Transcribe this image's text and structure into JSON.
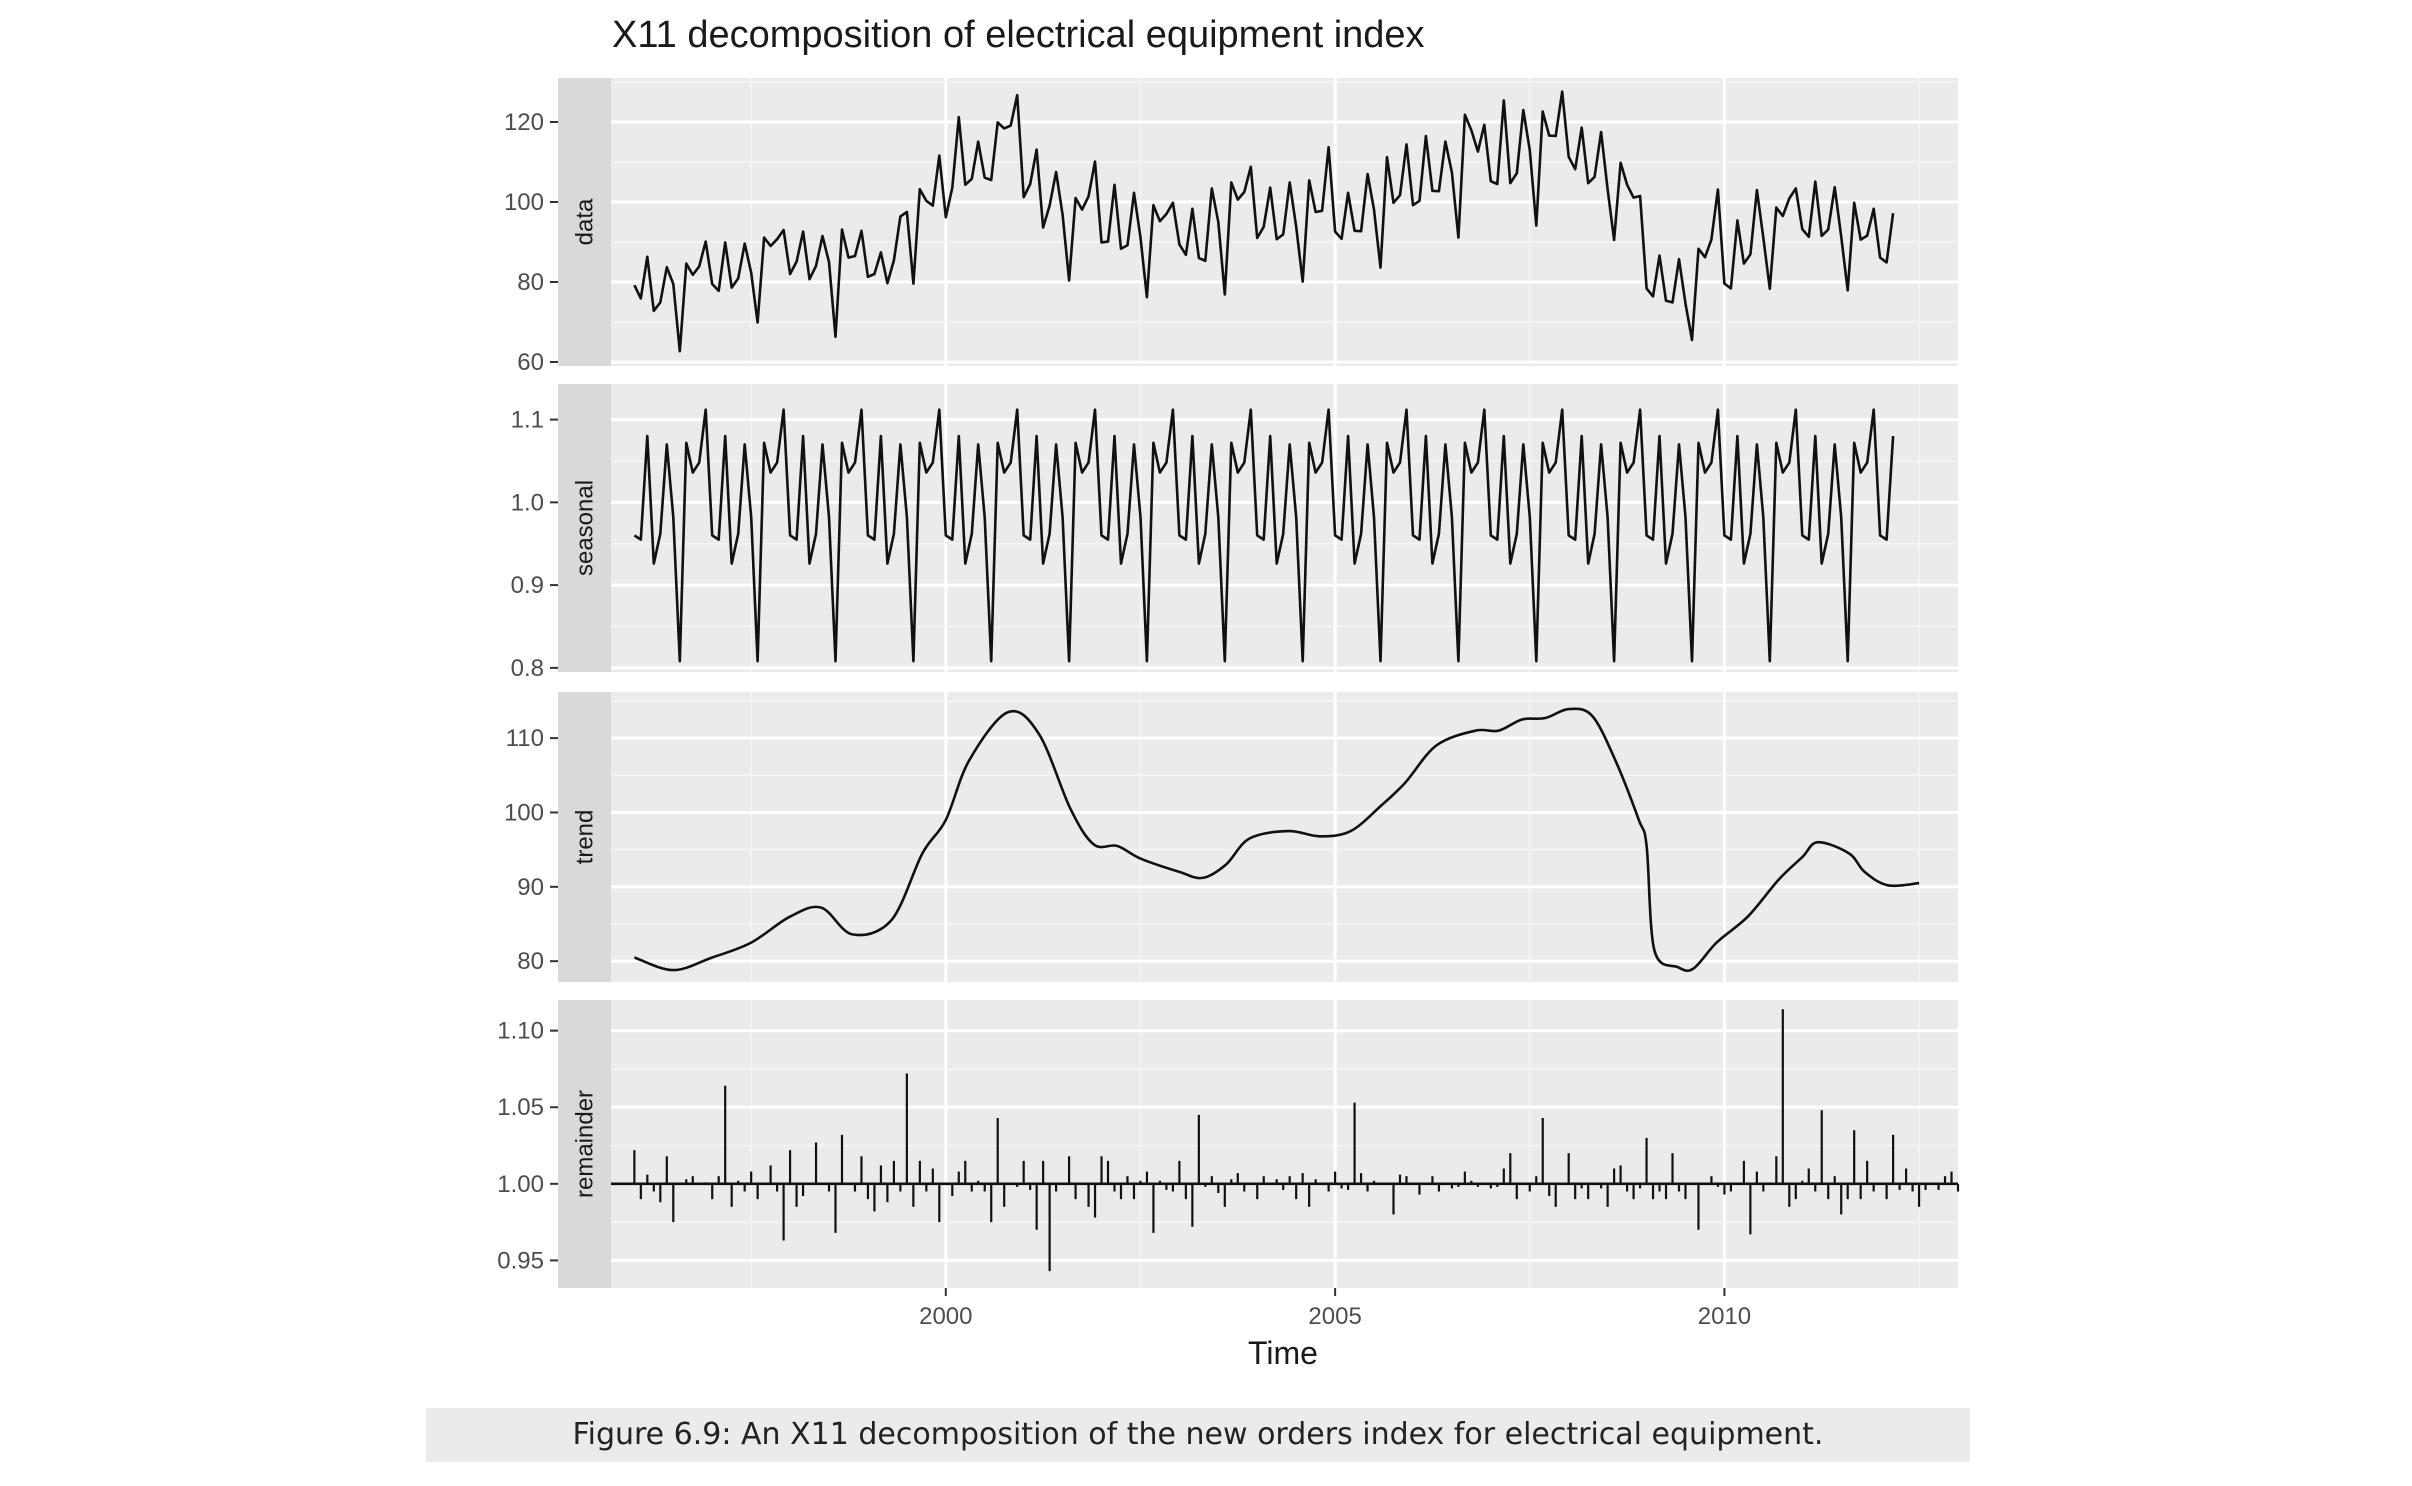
{
  "caption": "Figure 6.9: An X11 decomposition of the new orders index for electrical equipment.",
  "chart_data": {
    "type": "line",
    "title": "X11 decomposition of electrical equipment index",
    "xlabel": "Time",
    "x_ticks": [
      2000,
      2005,
      2010
    ],
    "xlim": [
      1995.7,
      2013.0
    ],
    "start": 1996.0,
    "frequency": 12,
    "grid": true,
    "panels": [
      {
        "name": "data",
        "ylim": [
          59,
          131
        ],
        "y_ticks": [
          60,
          80,
          100,
          120
        ],
        "y_tick_labels": [
          "60",
          "80",
          "100",
          "120"
        ],
        "values": [
          79.2,
          75.9,
          86.3,
          72.8,
          74.9,
          83.7,
          79.5,
          62.7,
          84.6,
          81.8,
          83.9,
          90.1,
          79.5,
          77.8,
          89.9,
          78.6,
          80.9,
          89.6,
          82.3,
          69.9,
          91.1,
          89.0,
          90.7,
          93.0,
          82.0,
          85.1,
          92.6,
          80.7,
          84.0,
          91.5,
          85.0,
          66.3,
          93.1,
          86.1,
          86.5,
          92.8,
          81.3,
          82.0,
          87.4,
          79.7,
          85.4,
          96.4,
          97.5,
          79.6,
          103.2,
          100.3,
          99.1,
          111.6,
          96.2,
          103.6,
          121.2,
          104.3,
          105.8,
          115.1,
          106.1,
          105.5,
          119.9,
          118.4,
          119.1,
          126.7,
          101.2,
          104.5,
          113.1,
          93.6,
          99.1,
          107.5,
          96.8,
          80.4,
          101.0,
          98.1,
          101.4,
          110.1,
          89.9,
          90.1,
          104.3,
          88.3,
          89.2,
          102.3,
          91.1,
          76.2,
          99.2,
          95.2,
          97.0,
          99.8,
          89.4,
          86.8,
          98.3,
          86.0,
          85.3,
          103.4,
          95.0,
          76.9,
          104.9,
          100.6,
          102.5,
          108.8,
          91.0,
          93.8,
          103.6,
          90.7,
          91.9,
          104.9,
          93.8,
          80.1,
          105.4,
          97.5,
          97.8,
          113.7,
          92.6,
          90.8,
          102.3,
          92.8,
          92.7,
          107.0,
          98.1,
          83.6,
          111.2,
          99.8,
          101.7,
          114.4,
          99.2,
          100.3,
          116.5,
          102.8,
          102.7,
          115.1,
          107.4,
          91.1,
          121.8,
          117.9,
          112.6,
          119.3,
          105.2,
          104.5,
          125.4,
          104.7,
          107.2,
          123.0,
          112.9,
          94.1,
          122.6,
          116.6,
          116.5,
          127.6,
          111.3,
          108.2,
          118.6,
          104.7,
          106.3,
          117.5,
          103.2,
          90.5,
          109.8,
          104.3,
          101.1,
          101.5,
          78.4,
          76.4,
          86.6,
          75.3,
          74.9,
          85.7,
          74.6,
          65.5,
          88.3,
          86.2,
          90.6,
          103.1,
          79.6,
          78.4,
          95.4,
          84.6,
          86.9,
          103.0,
          91.1,
          78.3,
          98.6,
          96.5,
          100.9,
          103.4,
          93.2,
          91.3,
          105.1,
          91.5,
          93.1,
          103.7,
          91.4,
          77.9,
          99.8,
          90.6,
          91.6,
          98.3,
          86.1,
          84.9,
          97.2
        ],
        "line": true
      },
      {
        "name": "seasonal",
        "ylim": [
          0.795,
          1.143
        ],
        "y_ticks": [
          0.8,
          0.9,
          1.0,
          1.1
        ],
        "y_tick_labels": [
          "0.8",
          "0.9",
          "1.0",
          "1.1"
        ],
        "pattern": [
          0.96,
          0.955,
          1.08,
          0.926,
          0.962,
          1.07,
          0.982,
          0.808,
          1.072,
          1.036,
          1.048,
          1.112
        ],
        "line": true
      },
      {
        "name": "trend",
        "ylim": [
          77.2,
          116.2
        ],
        "y_ticks": [
          80,
          90,
          100,
          110
        ],
        "y_tick_labels": [
          "80",
          "90",
          "100",
          "110"
        ],
        "knots": [
          [
            1996.0,
            80.5
          ],
          [
            1996.5,
            78.8
          ],
          [
            1997.0,
            80.5
          ],
          [
            1997.5,
            82.5
          ],
          [
            1998.0,
            86.0
          ],
          [
            1998.4,
            87.2
          ],
          [
            1998.8,
            83.6
          ],
          [
            1999.3,
            85.5
          ],
          [
            1999.7,
            94.5
          ],
          [
            2000.0,
            99.0
          ],
          [
            2000.3,
            107.0
          ],
          [
            2000.8,
            113.5
          ],
          [
            2001.2,
            110.5
          ],
          [
            2001.6,
            100.5
          ],
          [
            2001.9,
            95.7
          ],
          [
            2002.2,
            95.5
          ],
          [
            2002.5,
            93.8
          ],
          [
            2003.0,
            92.0
          ],
          [
            2003.3,
            91.2
          ],
          [
            2003.6,
            93.0
          ],
          [
            2003.9,
            96.5
          ],
          [
            2004.4,
            97.5
          ],
          [
            2004.8,
            96.8
          ],
          [
            2005.2,
            97.5
          ],
          [
            2005.6,
            101.0
          ],
          [
            2005.9,
            104.0
          ],
          [
            2006.3,
            109.0
          ],
          [
            2006.8,
            111.0
          ],
          [
            2007.1,
            111.0
          ],
          [
            2007.4,
            112.5
          ],
          [
            2007.7,
            112.7
          ],
          [
            2008.0,
            113.9
          ],
          [
            2008.3,
            113.0
          ],
          [
            2008.6,
            107.0
          ],
          [
            2008.9,
            99.0
          ],
          [
            2009.0,
            95.5
          ],
          [
            2009.1,
            81.5
          ],
          [
            2009.4,
            79.2
          ],
          [
            2009.6,
            79.0
          ],
          [
            2009.9,
            82.5
          ],
          [
            2010.3,
            86.0
          ],
          [
            2010.7,
            91.0
          ],
          [
            2011.0,
            94.0
          ],
          [
            2011.2,
            96.0
          ],
          [
            2011.6,
            94.5
          ],
          [
            2011.8,
            92.0
          ],
          [
            2012.1,
            90.2
          ],
          [
            2012.5,
            90.5
          ]
        ],
        "line": true
      },
      {
        "name": "remainder",
        "ylim": [
          0.932,
          1.12
        ],
        "y_ticks": [
          0.95,
          1.0,
          1.05,
          1.1
        ],
        "y_tick_labels": [
          "0.95",
          "1.00",
          "1.05",
          "1.10"
        ],
        "baseline": 1.0,
        "values": [
          1.022,
          0.99,
          1.006,
          0.995,
          0.988,
          1.018,
          0.975,
          1.0,
          1.003,
          1.005,
          1.0,
          1.001,
          0.99,
          1.005,
          1.064,
          0.985,
          1.002,
          0.995,
          1.008,
          0.99,
          1.0,
          1.012,
          0.995,
          0.963,
          1.022,
          0.985,
          0.992,
          1.0,
          1.027,
          1.0,
          0.995,
          0.968,
          1.032,
          1.0,
          0.995,
          1.018,
          0.99,
          0.982,
          1.012,
          0.988,
          1.015,
          0.995,
          1.072,
          0.985,
          1.015,
          0.995,
          1.01,
          0.975,
          1.0,
          0.992,
          1.008,
          1.015,
          0.995,
          1.002,
          0.995,
          0.975,
          1.043,
          0.985,
          1.0,
          0.998,
          1.015,
          0.996,
          0.97,
          1.015,
          0.943,
          0.995,
          1.0,
          1.018,
          0.99,
          1.0,
          0.985,
          0.978,
          1.018,
          1.015,
          0.995,
          0.99,
          1.005,
          0.99,
          1.002,
          1.008,
          0.968,
          1.002,
          0.996,
          0.995,
          1.015,
          0.99,
          0.972,
          1.045,
          0.998,
          1.005,
          0.994,
          0.985,
          1.003,
          1.007,
          0.995,
          1.0,
          0.99,
          1.005,
          1.0,
          1.003,
          0.996,
          1.005,
          0.99,
          1.007,
          0.985,
          1.003,
          1.0,
          0.995,
          1.008,
          0.997,
          0.996,
          1.053,
          1.007,
          0.995,
          1.002,
          1.0,
          1.0,
          0.98,
          1.006,
          1.005,
          1.0,
          0.993,
          1.0,
          1.005,
          0.995,
          1.0,
          0.997,
          0.998,
          1.008,
          1.002,
          0.998,
          1.0,
          0.997,
          0.998,
          1.01,
          1.02,
          0.99,
          1.0,
          0.995,
          1.005,
          1.043,
          0.992,
          0.985,
          1.0,
          1.02,
          0.99,
          0.997,
          0.99,
          1.0,
          0.997,
          0.985,
          1.01,
          1.012,
          0.995,
          0.99,
          0.997,
          1.03,
          0.99,
          0.995,
          0.99,
          1.02,
          0.995,
          0.99,
          1.0,
          0.97,
          1.0,
          1.005,
          0.998,
          0.993,
          0.995,
          1.0,
          1.015,
          0.967,
          1.008,
          0.995,
          1.0,
          1.018,
          1.114,
          0.985,
          0.99,
          1.002,
          1.01,
          0.995,
          1.048,
          0.99,
          1.005,
          0.98,
          0.99,
          1.035,
          0.99,
          1.015,
          0.995,
          1.0,
          0.99,
          1.032,
          0.996,
          1.01,
          0.995,
          0.985,
          0.996,
          1.0,
          0.996,
          1.005,
          1.008,
          0.995
        ],
        "line": false
      }
    ]
  }
}
